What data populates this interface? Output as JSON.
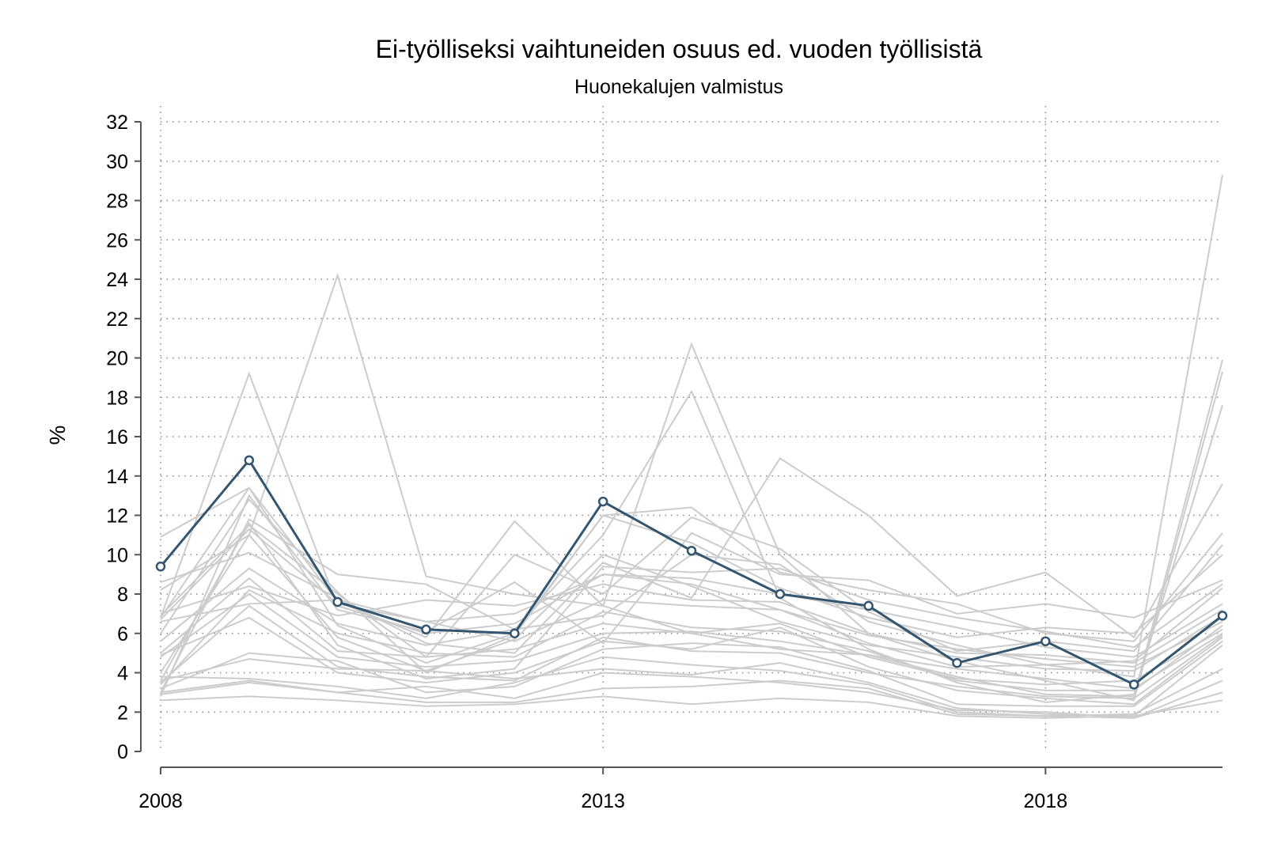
{
  "chart_data": {
    "type": "line",
    "title": "Ei-työlliseksi vaihtuneiden osuus ed. vuoden työllisistä",
    "subtitle": "Huonekalujen valmistus",
    "xlabel": "",
    "ylabel": "%",
    "xlim": [
      2008,
      2020
    ],
    "ylim": [
      0,
      32
    ],
    "x_ticks": [
      2008,
      2013,
      2018
    ],
    "y_ticks": [
      0,
      2,
      4,
      6,
      8,
      10,
      12,
      14,
      16,
      18,
      20,
      22,
      24,
      26,
      28,
      30,
      32
    ],
    "grid": true,
    "legend": "none",
    "x": [
      2008,
      2009,
      2010,
      2011,
      2012,
      2013,
      2014,
      2015,
      2016,
      2017,
      2018,
      2019,
      2020
    ],
    "highlight": {
      "color": "#34556f",
      "values": [
        9.4,
        14.8,
        7.6,
        6.2,
        6.0,
        12.7,
        10.2,
        8.0,
        7.4,
        4.5,
        5.6,
        3.4,
        6.9
      ]
    },
    "background_color": "#cccccc",
    "background_series": [
      [
        6.8,
        19.2,
        7.4,
        6.0,
        6.5,
        9.0,
        8.5,
        7.2,
        5.5,
        4.3,
        4.4,
        3.8,
        29.3
      ],
      [
        4.0,
        11.0,
        24.2,
        8.9,
        8.0,
        7.4,
        6.0,
        5.2,
        4.9,
        3.8,
        2.9,
        2.8,
        19.9
      ],
      [
        10.9,
        13.4,
        7.6,
        5.8,
        11.7,
        7.4,
        20.7,
        10.0,
        6.0,
        4.6,
        3.6,
        2.6,
        19.3
      ],
      [
        3.0,
        11.8,
        9.0,
        8.5,
        6.2,
        11.0,
        18.3,
        7.8,
        5.2,
        3.5,
        2.5,
        2.9,
        17.6
      ],
      [
        8.6,
        10.1,
        7.8,
        5.5,
        5.0,
        9.6,
        7.8,
        14.9,
        12.0,
        7.9,
        9.1,
        5.8,
        13.6
      ],
      [
        6.8,
        13.4,
        6.4,
        4.5,
        6.0,
        12.0,
        12.4,
        9.1,
        8.2,
        7.5,
        6.0,
        5.6,
        11.1
      ],
      [
        6.9,
        11.5,
        8.0,
        4.8,
        10.0,
        8.0,
        11.9,
        10.3,
        7.1,
        5.1,
        5.6,
        5.1,
        10.5
      ],
      [
        6.0,
        12.8,
        8.1,
        4.0,
        5.9,
        12.0,
        10.6,
        8.3,
        6.8,
        5.8,
        6.3,
        6.0,
        10.0
      ],
      [
        2.8,
        13.0,
        7.2,
        6.1,
        8.6,
        5.5,
        11.1,
        9.0,
        8.7,
        7.0,
        7.5,
        6.8,
        8.7
      ],
      [
        3.6,
        11.6,
        5.4,
        3.7,
        4.2,
        9.4,
        9.1,
        9.3,
        7.7,
        6.8,
        6.1,
        5.3,
        8.5
      ],
      [
        5.6,
        9.3,
        6.5,
        5.4,
        6.2,
        6.9,
        10.0,
        9.5,
        6.6,
        5.4,
        4.4,
        4.6,
        8.3
      ],
      [
        6.7,
        11.3,
        7.5,
        6.6,
        7.0,
        9.0,
        8.8,
        8.0,
        7.2,
        6.3,
        5.3,
        4.8,
        7.5
      ],
      [
        7.0,
        8.4,
        6.9,
        7.7,
        7.4,
        8.5,
        7.7,
        7.6,
        6.0,
        5.0,
        4.9,
        4.5,
        7.2
      ],
      [
        8.2,
        11.0,
        5.8,
        4.1,
        5.7,
        10.0,
        8.4,
        6.6,
        5.4,
        4.8,
        4.2,
        4.1,
        6.9
      ],
      [
        6.6,
        7.5,
        7.7,
        6.6,
        5.6,
        7.7,
        7.4,
        7.2,
        5.9,
        5.2,
        4.7,
        4.3,
        6.6
      ],
      [
        3.4,
        8.2,
        6.0,
        5.0,
        4.8,
        7.1,
        6.3,
        6.1,
        5.1,
        3.6,
        3.1,
        3.1,
        6.4
      ],
      [
        5.0,
        8.8,
        5.1,
        4.8,
        5.2,
        6.5,
        6.0,
        6.5,
        4.8,
        3.7,
        3.4,
        3.6,
        6.2
      ],
      [
        4.8,
        8.0,
        4.8,
        4.3,
        4.6,
        6.0,
        6.1,
        5.6,
        4.9,
        4.2,
        3.7,
        3.2,
        6.0
      ],
      [
        3.5,
        7.4,
        4.3,
        3.8,
        3.6,
        5.8,
        5.1,
        5.0,
        4.0,
        3.3,
        2.8,
        2.7,
        5.9
      ],
      [
        4.9,
        6.8,
        4.0,
        3.5,
        4.0,
        5.6,
        5.2,
        6.3,
        4.3,
        3.1,
        2.7,
        2.4,
        5.8
      ],
      [
        3.2,
        5.0,
        4.6,
        3.0,
        3.3,
        5.2,
        5.5,
        5.3,
        4.1,
        2.4,
        2.3,
        2.3,
        5.6
      ],
      [
        3.6,
        4.7,
        4.2,
        4.1,
        3.7,
        4.2,
        3.9,
        4.5,
        3.5,
        2.2,
        1.9,
        1.8,
        5.4
      ],
      [
        3.8,
        3.7,
        3.3,
        2.7,
        3.5,
        4.8,
        4.4,
        4.1,
        3.4,
        2.0,
        1.8,
        1.9,
        4.2
      ],
      [
        2.9,
        3.5,
        3.0,
        3.3,
        2.7,
        4.0,
        3.8,
        3.5,
        3.0,
        2.1,
        2.0,
        1.7,
        3.6
      ],
      [
        3.0,
        3.6,
        3.0,
        2.5,
        2.5,
        3.2,
        3.3,
        3.6,
        3.2,
        1.9,
        1.8,
        1.7,
        3.0
      ],
      [
        2.6,
        2.8,
        2.6,
        2.3,
        2.4,
        2.8,
        2.4,
        2.7,
        2.5,
        1.8,
        1.7,
        1.8,
        2.6
      ]
    ]
  }
}
